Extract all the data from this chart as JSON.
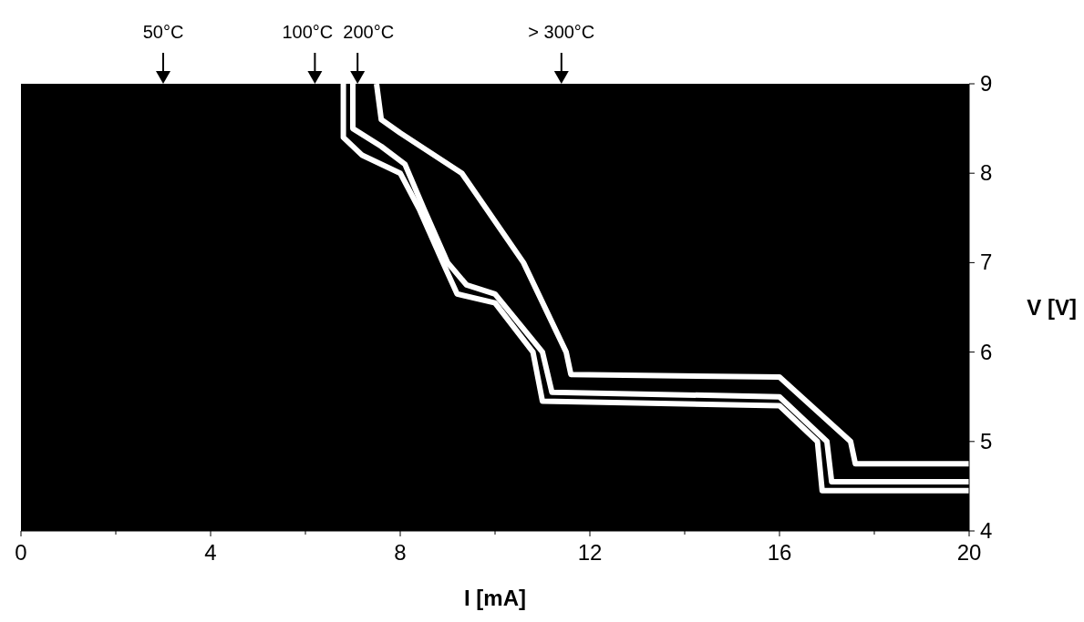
{
  "chart_data": {
    "type": "line",
    "xlabel": "I [mA]",
    "ylabel": "V [V]",
    "xlim": [
      0,
      20
    ],
    "ylim": [
      4,
      9
    ],
    "xticks": [
      0,
      {
        "value": 2,
        "label": null
      },
      4,
      {
        "value": 6,
        "label": null
      },
      8,
      {
        "value": 10,
        "label": null
      },
      12,
      {
        "value": 14,
        "label": null
      },
      16,
      {
        "value": 18,
        "label": null
      },
      20
    ],
    "yticks": [
      4,
      5,
      6,
      7,
      8,
      9
    ],
    "grid": false,
    "marker": "none",
    "line_style": "solid",
    "annotations": [
      "50°C",
      "100°C",
      "200°C",
      "> 300°C"
    ],
    "series": [
      {
        "color": "#ffffff",
        "x": [
          7.5,
          7.6,
          8.0,
          9.3,
          10.6,
          11.5,
          11.6,
          16,
          17.5,
          17.6,
          20
        ],
        "values": [
          9,
          8.6,
          8.45,
          8.0,
          7.0,
          6.0,
          5.75,
          5.72,
          5.0,
          4.75,
          4.75
        ]
      },
      {
        "color": "#ffffff",
        "x": [
          7.0,
          7.0,
          7.6,
          8.1,
          8.5,
          9.0,
          9.4,
          10.0,
          11.0,
          11.2,
          16,
          17.0,
          17.1,
          20
        ],
        "values": [
          9,
          8.5,
          8.3,
          8.1,
          7.6,
          7.0,
          6.75,
          6.65,
          6.0,
          5.55,
          5.5,
          5.0,
          4.55,
          4.55
        ]
      },
      {
        "color": "#ffffff",
        "x": [
          6.8,
          6.8,
          7.2,
          8.0,
          8.4,
          8.9,
          9.2,
          10.0,
          10.8,
          11.0,
          16,
          16.8,
          16.9,
          20
        ],
        "values": [
          9,
          8.4,
          8.2,
          8.0,
          7.6,
          7.0,
          6.65,
          6.55,
          6.0,
          5.45,
          5.4,
          5.0,
          4.45,
          4.45
        ]
      }
    ]
  }
}
